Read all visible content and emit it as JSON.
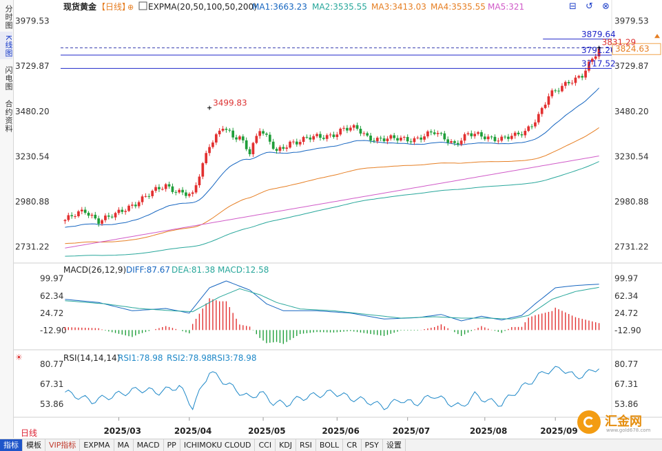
{
  "side_tabs": [
    "分时图",
    "K线图",
    "闪电图",
    "合约资料"
  ],
  "active_side_tab": 1,
  "period_label": "日线",
  "toolbar": [
    "指标",
    "模板",
    "VIP指标",
    "EXPMA",
    "MA",
    "MACD",
    "PP",
    "ICHIMOKU CLOUD",
    "CCI",
    "KDJ",
    "RSI",
    "BOLL",
    "CR",
    "PSY",
    "设置"
  ],
  "active_toolbar": 0,
  "brand": {
    "name": "汇金网",
    "url": "www.gold678.com"
  },
  "colors": {
    "up": "#e23030",
    "down": "#1f9e3a",
    "ma1": "#1565c0",
    "ma2": "#26a69a",
    "ma3": "#e67e22",
    "ma5": "#d05ac8",
    "macd_diff": "#1565c0",
    "macd_dea": "#26a69a",
    "hline": "#1d24c8"
  },
  "chart_data": [
    {
      "type": "candlestick",
      "title": "现货黄金",
      "period": "日线",
      "indicator_title": "EXPMA(20,50,100,50,200)",
      "legend": [
        {
          "name": "MA1",
          "value": "3663.23"
        },
        {
          "name": "MA2",
          "value": "3535.55"
        },
        {
          "name": "MA3",
          "value": "3413.03"
        },
        {
          "name": "MA4",
          "value": "3535.55"
        },
        {
          "name": "MA5",
          "value": "321"
        }
      ],
      "y_ticks": [
        "3979.53",
        "3729.87",
        "3480.20",
        "3230.54",
        "2980.88",
        "2731.22"
      ],
      "ylim": [
        2650,
        4050
      ],
      "x_ticks": [
        {
          "label": "2025/03",
          "index": 16
        },
        {
          "label": "2025/04",
          "index": 37
        },
        {
          "label": "2025/05",
          "index": 59
        },
        {
          "label": "2025/06",
          "index": 81
        },
        {
          "label": "2025/07",
          "index": 102
        },
        {
          "label": "2025/08",
          "index": 125
        },
        {
          "label": "2025/09",
          "index": 146
        }
      ],
      "candle_count": 160,
      "anchors": [
        [
          0,
          2880
        ],
        [
          6,
          2930
        ],
        [
          10,
          2880
        ],
        [
          15,
          2905
        ],
        [
          22,
          2990
        ],
        [
          30,
          3070
        ],
        [
          38,
          3010
        ],
        [
          43,
          3300
        ],
        [
          47,
          3400
        ],
        [
          50,
          3330
        ],
        [
          52,
          3330
        ],
        [
          55,
          3260
        ],
        [
          58,
          3390
        ],
        [
          63,
          3250
        ],
        [
          67,
          3310
        ],
        [
          72,
          3330
        ],
        [
          76,
          3335
        ],
        [
          79,
          3350
        ],
        [
          83,
          3385
        ],
        [
          87,
          3380
        ],
        [
          90,
          3340
        ],
        [
          93,
          3330
        ],
        [
          98,
          3325
        ],
        [
          104,
          3330
        ],
        [
          110,
          3360
        ],
        [
          114,
          3325
        ],
        [
          116,
          3305
        ],
        [
          120,
          3350
        ],
        [
          126,
          3340
        ],
        [
          130,
          3330
        ],
        [
          134,
          3340
        ],
        [
          137,
          3370
        ],
        [
          141,
          3460
        ],
        [
          144,
          3560
        ],
        [
          147,
          3600
        ],
        [
          150,
          3650
        ],
        [
          154,
          3680
        ],
        [
          157,
          3760
        ],
        [
          159,
          3820
        ]
      ],
      "last_price": "3824.63",
      "high_label": {
        "value": "3499.83",
        "index": 43
      },
      "peak_label": {
        "value": "3831.29",
        "index": 159
      },
      "hlines": [
        {
          "value": 3879.64,
          "label": "3879.64",
          "from_index": 130
        },
        {
          "value": 3791.26,
          "label": "3791.26",
          "from_index": 0
        },
        {
          "value": 3717.52,
          "label": "3717.52",
          "from_index": 0
        }
      ],
      "dashed_level": 3831.29
    },
    {
      "type": "macd",
      "title": "MACD(26,12,9)",
      "legend": [
        {
          "name": "DIFF",
          "value": "87.67"
        },
        {
          "name": "DEA",
          "value": "81.38"
        },
        {
          "name": "MACD",
          "value": "12.58"
        }
      ],
      "y_ticks": [
        "99.97",
        "62.34",
        "24.72",
        "-12.90"
      ],
      "ylim": [
        -40,
        110
      ],
      "diff_anchors": [
        [
          0,
          55
        ],
        [
          10,
          48
        ],
        [
          20,
          30
        ],
        [
          30,
          35
        ],
        [
          37,
          25
        ],
        [
          43,
          80
        ],
        [
          48,
          95
        ],
        [
          55,
          75
        ],
        [
          60,
          45
        ],
        [
          65,
          30
        ],
        [
          75,
          30
        ],
        [
          85,
          25
        ],
        [
          95,
          12
        ],
        [
          105,
          15
        ],
        [
          112,
          22
        ],
        [
          118,
          8
        ],
        [
          124,
          18
        ],
        [
          130,
          10
        ],
        [
          136,
          20
        ],
        [
          140,
          45
        ],
        [
          146,
          80
        ],
        [
          152,
          85
        ],
        [
          159,
          88
        ]
      ],
      "dea_anchors": [
        [
          0,
          52
        ],
        [
          12,
          45
        ],
        [
          22,
          35
        ],
        [
          32,
          30
        ],
        [
          38,
          28
        ],
        [
          46,
          60
        ],
        [
          52,
          78
        ],
        [
          58,
          65
        ],
        [
          63,
          48
        ],
        [
          70,
          34
        ],
        [
          80,
          30
        ],
        [
          90,
          22
        ],
        [
          100,
          14
        ],
        [
          110,
          17
        ],
        [
          118,
          14
        ],
        [
          126,
          14
        ],
        [
          133,
          12
        ],
        [
          138,
          20
        ],
        [
          145,
          55
        ],
        [
          152,
          72
        ],
        [
          159,
          81
        ]
      ]
    },
    {
      "type": "rsi",
      "title": "RSI(14,14,14)",
      "legend": [
        {
          "name": "RSI1",
          "value": "78.98"
        },
        {
          "name": "RSI2",
          "value": "78.98"
        },
        {
          "name": "RSI3",
          "value": "78.98"
        }
      ],
      "y_ticks": [
        "80.77",
        "67.31",
        "53.86"
      ],
      "ylim": [
        46,
        84
      ],
      "rsi_anchors": [
        [
          0,
          62
        ],
        [
          8,
          56
        ],
        [
          15,
          60
        ],
        [
          22,
          64
        ],
        [
          28,
          62
        ],
        [
          34,
          66
        ],
        [
          38,
          52
        ],
        [
          43,
          76
        ],
        [
          48,
          68
        ],
        [
          52,
          62
        ],
        [
          55,
          58
        ],
        [
          58,
          62
        ],
        [
          62,
          55
        ],
        [
          66,
          54
        ],
        [
          70,
          58
        ],
        [
          75,
          60
        ],
        [
          80,
          62
        ],
        [
          85,
          58
        ],
        [
          90,
          56
        ],
        [
          95,
          52
        ],
        [
          100,
          57
        ],
        [
          104,
          54
        ],
        [
          110,
          60
        ],
        [
          114,
          55
        ],
        [
          118,
          52
        ],
        [
          122,
          60
        ],
        [
          126,
          56
        ],
        [
          130,
          54
        ],
        [
          134,
          62
        ],
        [
          138,
          68
        ],
        [
          143,
          76
        ],
        [
          148,
          78
        ],
        [
          152,
          72
        ],
        [
          156,
          75
        ],
        [
          159,
          79
        ]
      ]
    }
  ]
}
